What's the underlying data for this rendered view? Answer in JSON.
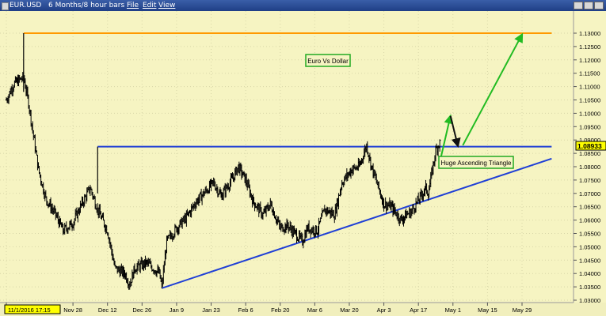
{
  "window": {
    "symbol": "EUR.USD",
    "period": "6 Months/8 hour bars",
    "menu": [
      "File",
      "Edit",
      "View"
    ]
  },
  "chart_data": {
    "type": "candlestick",
    "annotations": [
      "Euro Vs Dollar",
      "Huge Ascending Triangle"
    ],
    "last_price_label": "1.08933",
    "x_ticks": [
      "11/1/2016 17:15",
      "Nov 28",
      "Dec 12",
      "Dec 26",
      "Jan 9",
      "Jan 23",
      "Feb 6",
      "Feb 20",
      "Mar 6",
      "Mar 20",
      "Apr 3",
      "Apr 17",
      "May 1",
      "May 15",
      "May 29"
    ],
    "y_ticks": [
      "1.13000",
      "1.12500",
      "1.12000",
      "1.11500",
      "1.11000",
      "1.10500",
      "1.10000",
      "1.09500",
      "1.09000",
      "1.08500",
      "1.08000",
      "1.07500",
      "1.07000",
      "1.06500",
      "1.06000",
      "1.05500",
      "1.05000",
      "1.04500",
      "1.04000",
      "1.03500",
      "1.03000"
    ],
    "ylim": [
      1.028,
      1.1345
    ],
    "path": [
      [
        "11/1/2016",
        1.105
      ],
      [
        "11/4/2016",
        1.111
      ],
      [
        "11/8/2016",
        1.1135
      ],
      [
        "11/10/2016",
        1.104
      ],
      [
        "11/14/2016",
        1.079
      ],
      [
        "11/17/2016",
        1.068
      ],
      [
        "11/21/2016",
        1.062
      ],
      [
        "11/24/2016",
        1.056
      ],
      [
        "11/28/2016",
        1.059
      ],
      [
        "12/1/2016",
        1.065
      ],
      [
        "12/5/2016",
        1.072
      ],
      [
        "12/8/2016",
        1.064
      ],
      [
        "12/12/2016",
        1.056
      ],
      [
        "12/15/2016",
        1.042
      ],
      [
        "12/19/2016",
        1.04
      ],
      [
        "12/21/2016",
        1.036
      ],
      [
        "12/23/2016",
        1.042
      ],
      [
        "12/28/2016",
        1.044
      ],
      [
        "1/2/2017",
        1.04
      ],
      [
        "1/3/2017",
        1.035
      ],
      [
        "1/5/2017",
        1.052
      ],
      [
        "1/9/2017",
        1.057
      ],
      [
        "1/13/2017",
        1.061
      ],
      [
        "1/17/2017",
        1.067
      ],
      [
        "1/20/2017",
        1.07
      ],
      [
        "1/24/2017",
        1.074
      ],
      [
        "1/27/2017",
        1.069
      ],
      [
        "2/1/2017",
        1.076
      ],
      [
        "2/3/2017",
        1.08
      ],
      [
        "2/6/2017",
        1.075
      ],
      [
        "2/9/2017",
        1.067
      ],
      [
        "2/13/2017",
        1.062
      ],
      [
        "2/16/2017",
        1.066
      ],
      [
        "2/20/2017",
        1.057
      ],
      [
        "2/23/2017",
        1.058
      ],
      [
        "2/27/2017",
        1.054
      ],
      [
        "3/1/2017",
        1.052
      ],
      [
        "3/3/2017",
        1.057
      ],
      [
        "3/7/2017",
        1.056
      ],
      [
        "3/10/2017",
        1.064
      ],
      [
        "3/14/2017",
        1.062
      ],
      [
        "3/17/2017",
        1.074
      ],
      [
        "3/21/2017",
        1.079
      ],
      [
        "3/24/2017",
        1.08
      ],
      [
        "3/27/2017",
        1.088
      ],
      [
        "3/29/2017",
        1.08
      ],
      [
        "4/3/2017",
        1.066
      ],
      [
        "4/6/2017",
        1.065
      ],
      [
        "4/10/2017",
        1.06
      ],
      [
        "4/12/2017",
        1.062
      ],
      [
        "4/14/2017",
        1.063
      ],
      [
        "4/18/2017",
        1.069
      ],
      [
        "4/20/2017",
        1.072
      ],
      [
        "4/21/2017",
        1.07
      ],
      [
        "4/24/2017",
        1.086
      ],
      [
        "4/25/2017",
        1.088
      ],
      [
        "4/26/2017",
        1.0893
      ]
    ],
    "level_lines": [
      {
        "x": [
          "11/8/2016",
          "6/10/2017"
        ],
        "y": 1.13,
        "color": "#ff9900"
      },
      {
        "x": [
          "12/8/2016",
          "6/10/2017"
        ],
        "y": 1.0875,
        "color": "#1f3fd6"
      }
    ],
    "trend_line": {
      "x": [
        "1/3/2017",
        "6/10/2017"
      ],
      "y": [
        1.0345,
        1.083
      ],
      "color": "#1f3fd6"
    },
    "projection_arrows": [
      {
        "from": [
          "4/26/2017",
          1.083
        ],
        "to": [
          "4/30/2017",
          1.099
        ],
        "color": "#22bb22"
      },
      {
        "from": [
          "4/30/2017",
          1.099
        ],
        "to": [
          "5/3/2017",
          1.0878
        ],
        "color": "#111111"
      },
      {
        "from": [
          "5/5/2017",
          1.088
        ],
        "to": [
          "5/29/2017",
          1.1295
        ],
        "color": "#22bb22"
      }
    ],
    "colors": {
      "background": "#f6f4c2",
      "price": "#000000",
      "label_border": "#22aa22",
      "last_price_bg": "#ffff00"
    }
  }
}
